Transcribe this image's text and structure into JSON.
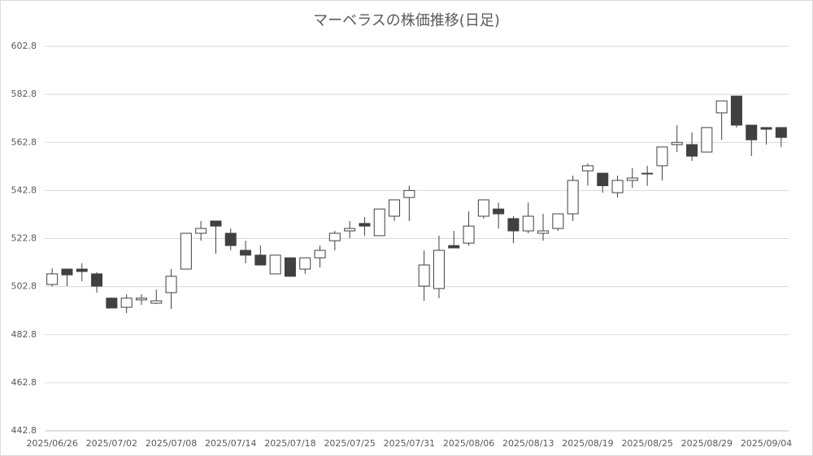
{
  "chart_data": {
    "type": "candlestick",
    "title": "マーベラスの株価推移(日足)",
    "categories": [
      "2025/06/26",
      null,
      null,
      null,
      "2025/07/02",
      null,
      null,
      null,
      "2025/07/08",
      null,
      null,
      null,
      "2025/07/14",
      null,
      null,
      null,
      "2025/07/18",
      null,
      null,
      null,
      "2025/07/25",
      null,
      null,
      null,
      "2025/07/31",
      null,
      null,
      null,
      "2025/08/06",
      null,
      null,
      null,
      "2025/08/13",
      null,
      null,
      null,
      "2025/08/19",
      null,
      null,
      null,
      "2025/08/25",
      null,
      null,
      null,
      "2025/08/29",
      null,
      null,
      null,
      "2025/09/04",
      null
    ],
    "open": [
      503.7,
      510.1,
      510.1,
      508.1,
      498.0,
      494.2,
      497.3,
      495.9,
      500.3,
      510.1,
      525.0,
      530.1,
      525.0,
      517.9,
      515.9,
      508.1,
      514.8,
      510.1,
      514.8,
      521.9,
      526.0,
      529.1,
      524.0,
      532.1,
      539.9,
      503.0,
      502.0,
      519.9,
      520.9,
      532.1,
      535.1,
      531.1,
      526.0,
      525.0,
      527.0,
      533.1,
      551.0,
      550.0,
      541.9,
      547.0,
      549.7,
      553.1,
      561.9,
      561.9,
      558.8,
      575.1,
      582.1,
      570.0,
      569.0,
      569.0
    ],
    "high": [
      510.4,
      510.1,
      512.5,
      508.8,
      498.3,
      499.6,
      499.6,
      501.6,
      510.1,
      525.0,
      530.1,
      530.1,
      527.0,
      521.9,
      519.9,
      515.9,
      514.8,
      514.8,
      519.9,
      526.0,
      530.1,
      531.8,
      535.1,
      538.9,
      544.8,
      517.9,
      524.0,
      526.0,
      534.1,
      538.9,
      537.8,
      532.1,
      537.8,
      533.1,
      533.1,
      549.0,
      554.1,
      550.0,
      549.0,
      552.1,
      553.1,
      560.9,
      570.0,
      567.0,
      569.0,
      580.1,
      582.1,
      570.0,
      569.0,
      569.0
    ],
    "low": [
      502.8,
      503.0,
      505.0,
      500.3,
      493.9,
      491.8,
      495.2,
      495.6,
      493.5,
      510.1,
      521.9,
      516.5,
      517.9,
      512.5,
      511.8,
      508.1,
      507.1,
      508.1,
      510.8,
      517.9,
      523.0,
      524.0,
      524.0,
      530.1,
      530.1,
      496.9,
      498.0,
      518.9,
      519.9,
      531.1,
      527.0,
      520.9,
      525.0,
      521.9,
      526.0,
      530.1,
      544.8,
      541.9,
      539.9,
      543.9,
      544.8,
      547.0,
      558.8,
      555.1,
      558.8,
      563.9,
      569.0,
      557.1,
      561.9,
      560.9
    ],
    "close": [
      508.1,
      507.7,
      509.1,
      503.0,
      493.9,
      498.0,
      498.0,
      496.9,
      507.1,
      525.0,
      527.0,
      528.0,
      519.9,
      515.9,
      511.8,
      515.9,
      507.1,
      514.8,
      517.9,
      525.0,
      527.0,
      528.0,
      535.1,
      538.9,
      542.8,
      511.8,
      517.9,
      518.9,
      528.0,
      538.9,
      533.1,
      526.0,
      532.1,
      526.0,
      533.1,
      547.0,
      553.1,
      544.8,
      547.0,
      548.0,
      550.0,
      560.9,
      562.8,
      557.1,
      569.0,
      580.1,
      570.0,
      563.9,
      568.3,
      564.9
    ],
    "up_color": "#ffffff",
    "down_color": "#404040",
    "edge_color": "#404040",
    "ylim": [
      442.8,
      602.8
    ],
    "yticks": [
      442.8,
      462.8,
      482.8,
      502.8,
      522.8,
      542.8,
      562.8,
      582.8,
      602.8
    ],
    "grid": true
  }
}
